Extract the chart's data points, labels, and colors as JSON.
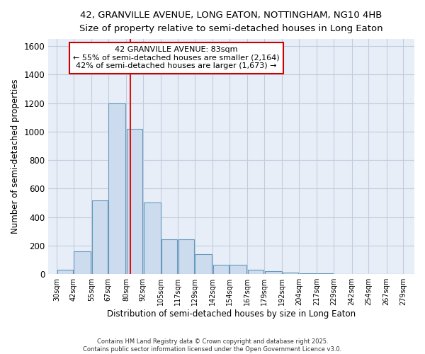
{
  "title_line1": "42, GRANVILLE AVENUE, LONG EATON, NOTTINGHAM, NG10 4HB",
  "title_line2": "Size of property relative to semi-detached houses in Long Eaton",
  "xlabel": "Distribution of semi-detached houses by size in Long Eaton",
  "ylabel": "Number of semi-detached properties",
  "bar_left_edges": [
    30,
    42,
    55,
    67,
    80,
    92,
    105,
    117,
    129,
    142,
    154,
    167,
    179,
    192,
    204,
    217,
    229,
    242,
    254,
    267
  ],
  "bar_heights": [
    30,
    160,
    520,
    1200,
    1020,
    505,
    245,
    245,
    140,
    65,
    65,
    30,
    22,
    10,
    7,
    5,
    2,
    1,
    0,
    0
  ],
  "bar_widths": [
    12,
    13,
    12,
    13,
    12,
    13,
    12,
    12,
    13,
    12,
    13,
    12,
    13,
    12,
    13,
    12,
    13,
    12,
    13,
    12
  ],
  "bar_color": "#ccdcee",
  "bar_edgecolor": "#6699bb",
  "ylim": [
    0,
    1650
  ],
  "yticks": [
    0,
    200,
    400,
    600,
    800,
    1000,
    1200,
    1400,
    1600
  ],
  "xlim": [
    24,
    287
  ],
  "xtick_labels": [
    "30sqm",
    "42sqm",
    "55sqm",
    "67sqm",
    "80sqm",
    "92sqm",
    "105sqm",
    "117sqm",
    "129sqm",
    "142sqm",
    "154sqm",
    "167sqm",
    "179sqm",
    "192sqm",
    "204sqm",
    "217sqm",
    "229sqm",
    "242sqm",
    "254sqm",
    "267sqm",
    "279sqm"
  ],
  "xtick_positions": [
    30,
    42,
    55,
    67,
    80,
    92,
    105,
    117,
    129,
    142,
    154,
    167,
    179,
    192,
    204,
    217,
    229,
    242,
    254,
    267,
    279
  ],
  "property_size": 83,
  "red_line_color": "#dd1111",
  "annotation_title": "42 GRANVILLE AVENUE: 83sqm",
  "annotation_line1": "← 55% of semi-detached houses are smaller (2,164)",
  "annotation_line2": "42% of semi-detached houses are larger (1,673) →",
  "annotation_box_facecolor": "#ffffff",
  "annotation_box_edgecolor": "#cc0000",
  "grid_color": "#c0ccdd",
  "plot_bg_color": "#e8eef8",
  "fig_bg_color": "#ffffff",
  "footer1": "Contains HM Land Registry data © Crown copyright and database right 2025.",
  "footer2": "Contains public sector information licensed under the Open Government Licence v3.0."
}
